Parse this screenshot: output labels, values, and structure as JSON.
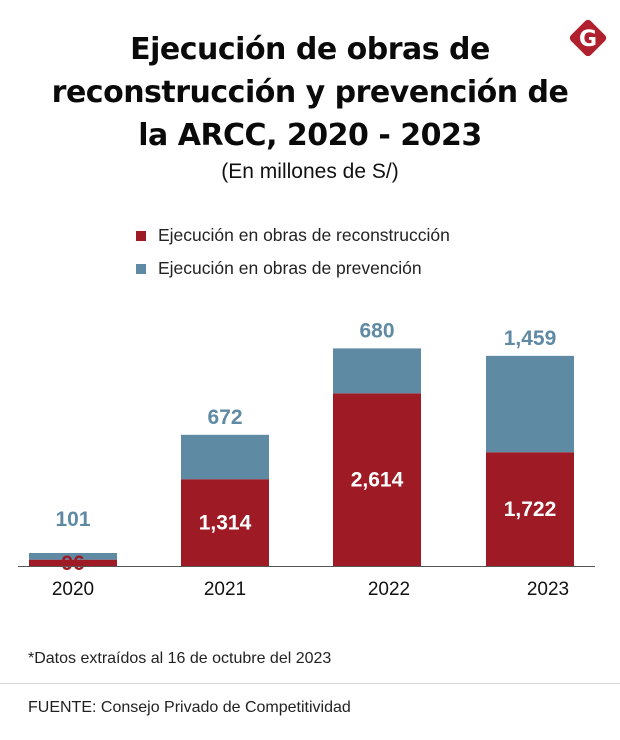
{
  "header": {
    "title_lines": [
      "Ejecución de obras de",
      "reconstrucción y prevención de",
      "la ARCC, 2020 - 2023"
    ],
    "subtitle": "(En millones de S/)",
    "logo_letter": "G",
    "logo_icon": "gestion-logo-icon"
  },
  "colors": {
    "reconstruction": "#9e1b26",
    "prevention": "#5f8aa3",
    "logo": "#b01f2e",
    "axis": "#555555"
  },
  "legend": [
    {
      "label": "Ejecución en obras de reconstrucción",
      "series": "reconstruction"
    },
    {
      "label": "Ejecución en obras de prevención",
      "series": "prevention"
    }
  ],
  "chart_data": {
    "type": "bar",
    "stacked": true,
    "title": "Ejecución de obras de reconstrucción y prevención de la ARCC, 2020 - 2023",
    "subtitle": "(En millones de S/)",
    "xlabel": "",
    "ylabel": "",
    "categories": [
      "2020",
      "2021",
      "2022",
      "2023"
    ],
    "series": [
      {
        "name": "Ejecución en obras de reconstrucción",
        "key": "reconstruction",
        "values": [
          96,
          1314,
          2614,
          1722
        ],
        "labels": [
          "96",
          "1,314",
          "2,614",
          "1,722"
        ]
      },
      {
        "name": "Ejecución en obras de prevención",
        "key": "prevention",
        "values": [
          101,
          672,
          680,
          1459
        ],
        "labels": [
          "101",
          "672",
          "680",
          "1,459"
        ]
      }
    ],
    "ylim": [
      0,
      3300
    ],
    "grid": false,
    "y_axis_visible": false,
    "legend_position": "top-center"
  },
  "footer": {
    "note": "*Datos extraídos al 16 de octubre del 2023",
    "source": "FUENTE: Consejo Privado de Competitividad"
  }
}
